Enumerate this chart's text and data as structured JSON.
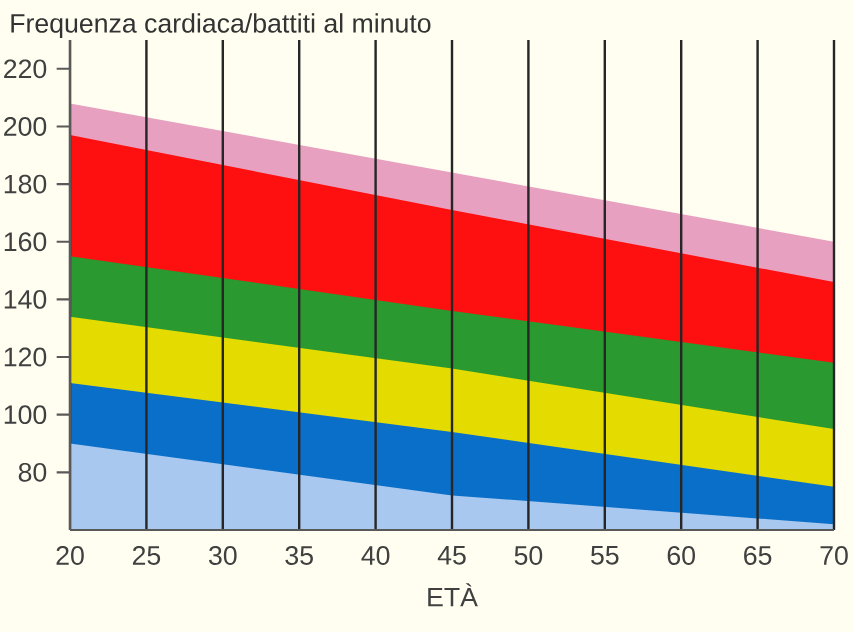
{
  "chart_data": {
    "type": "area",
    "title": "Frequenza cardiaca/battiti al minuto",
    "xlabel": "ETÀ",
    "x": [
      20,
      45,
      70
    ],
    "series": [
      {
        "color": "#a8c8f0",
        "values": [
          90,
          72,
          62
        ]
      },
      {
        "color": "#0a6fc8",
        "values": [
          111,
          94,
          75
        ]
      },
      {
        "color": "#e4dc00",
        "values": [
          134,
          116,
          95
        ]
      },
      {
        "color": "#2a9a30",
        "values": [
          155,
          136,
          118
        ]
      },
      {
        "color": "#ff1010",
        "values": [
          197,
          171,
          146
        ]
      },
      {
        "color": "#e8a0c0",
        "values": [
          208,
          184,
          160
        ]
      }
    ],
    "xlim": [
      20,
      70
    ],
    "ylim": [
      60,
      230
    ],
    "xticks": [
      20,
      25,
      30,
      35,
      40,
      45,
      50,
      55,
      60,
      65,
      70
    ],
    "yticks": [
      80,
      100,
      120,
      140,
      160,
      180,
      200,
      220
    ],
    "grid": "x"
  }
}
